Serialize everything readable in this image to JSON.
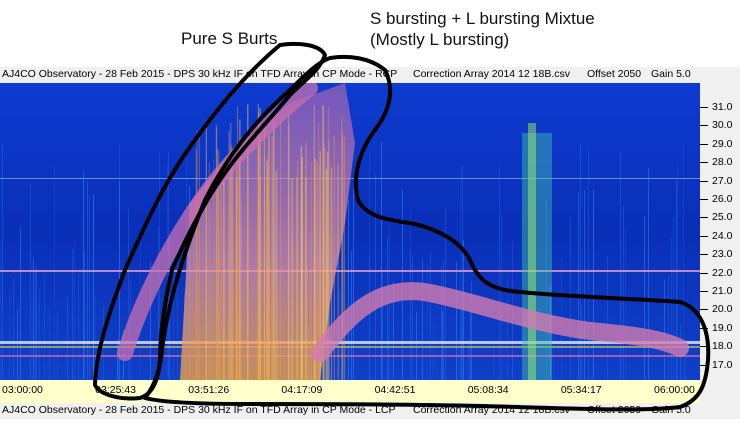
{
  "annotations": {
    "pure_s": "Pure S Burts",
    "mixture_line1": "S bursting + L bursting Mixtue",
    "mixture_line2": "(Mostly L bursting)"
  },
  "status_bar": {
    "observatory": "AJ4CO Observatory - 28 Feb 2015 - DPS 30 kHz IF on TFD Array in CP Mode - RCP",
    "correction": "Correction Array 2014 12 18B.csv",
    "offset": "Offset 2050",
    "gain": "Gain 5.0"
  },
  "status_bar_bottom": {
    "observatory": "AJ4CO Observatory - 28 Feb 2015 - DPS 30 kHz IF on TFD Array in CP Mode - LCP",
    "correction": "Correction Array 2014 12 18B.csv",
    "offset": "Offset 2050",
    "gain": "Gain 5.0"
  },
  "frequency_axis": {
    "ticks": [
      "31.0",
      "30.0",
      "29.0",
      "28.0",
      "27.0",
      "26.0",
      "25.0",
      "24.0",
      "23.0",
      "22.0",
      "21.0",
      "20.0",
      "19.0",
      "18.0",
      "17.0"
    ]
  },
  "time_axis": {
    "ticks": [
      "03:00:00",
      "03:25:43",
      "03:51:26",
      "04:17:09",
      "04:42:51",
      "05:08:34",
      "05:34:17",
      "06:00:00"
    ]
  },
  "colors": {
    "background_blue": "#0a2fb8",
    "burst_magenta": "#c86fb0",
    "highlight_orange": "#f0a040",
    "outline": "#000000"
  }
}
